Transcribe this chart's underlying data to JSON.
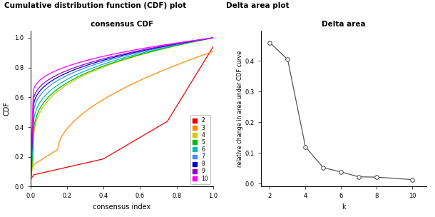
{
  "left_title": "Cumulative distribution function (CDF) plot",
  "right_title": "Delta area plot",
  "cdf_title": "consensus CDF",
  "delta_title": "Delta area",
  "cdf_xlabel": "consensus index",
  "cdf_ylabel": "CDF",
  "delta_xlabel": "k",
  "delta_ylabel": "relative change in area under CDF curve",
  "legend_labels": [
    "2",
    "3",
    "4",
    "5",
    "6",
    "7",
    "8",
    "9",
    "10"
  ],
  "legend_colors": [
    "#EE0000",
    "#FF8C00",
    "#CCCC00",
    "#00BB00",
    "#00BBBB",
    "#4488FF",
    "#0000CC",
    "#9900CC",
    "#FF00FF"
  ],
  "delta_k": [
    2,
    3,
    4,
    5,
    6,
    7,
    8,
    10
  ],
  "delta_values": [
    0.46,
    0.405,
    0.12,
    0.052,
    0.038,
    0.022,
    0.021,
    0.013
  ],
  "background_color": "#ffffff"
}
